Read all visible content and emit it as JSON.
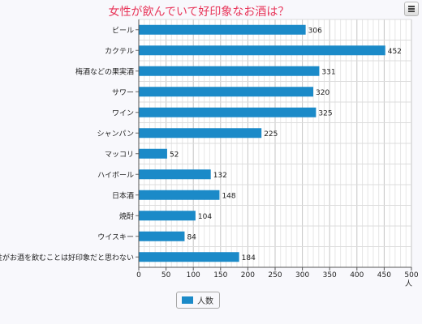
{
  "chart_data": {
    "type": "bar",
    "orientation": "horizontal",
    "title": "女性が飲んでいて好印象なお酒は？",
    "categories": [
      "ビール",
      "カクテル",
      "梅酒などの果実酒",
      "サワー",
      "ワイン",
      "シャンパン",
      "マッコリ",
      "ハイボール",
      "日本酒",
      "焼酎",
      "ウイスキー",
      "女性がお酒を飲むことは好印象だと思わない"
    ],
    "series": [
      {
        "name": "人数",
        "values": [
          306,
          452,
          331,
          320,
          325,
          225,
          52,
          132,
          148,
          104,
          84,
          184
        ]
      }
    ],
    "xlim": [
      0,
      500
    ],
    "x_ticks": [
      0,
      50,
      100,
      150,
      200,
      250,
      300,
      350,
      400,
      450,
      500
    ],
    "x_unit": "人",
    "grid": true,
    "legend_position": "bottom",
    "bar_color": "#1b8ac8",
    "title_color": "#e8365a"
  }
}
